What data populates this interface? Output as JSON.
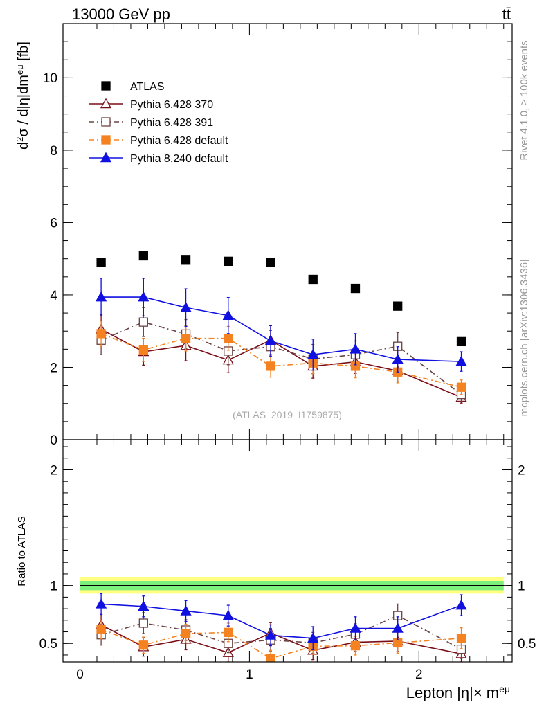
{
  "header": {
    "energy_label": "13000 GeV pp",
    "process_label": "tt̄"
  },
  "side_labels": {
    "rivet": "Rivet 4.1.0, ≥ 100k events",
    "mcplots": "mcplots.cern.ch [arXiv:1306.3436]"
  },
  "watermark": "(ATLAS_2019_I1759875)",
  "colors": {
    "atlas": "#000000",
    "p370": "#7a0e18",
    "p391": "#6b4343",
    "p6def": "#f58220",
    "p8def": "#1010e0",
    "band_outer": "#ffff80",
    "band_inner": "#7cf07c"
  },
  "chart_data": [
    {
      "type": "line",
      "panel": "main",
      "ylabel_parts": [
        "d",
        "2",
        "σ / d|η|dm",
        "eμ",
        " [fb]"
      ],
      "ylim": [
        0,
        11.5
      ],
      "yticks": [
        0,
        2,
        4,
        6,
        8,
        10
      ],
      "ytick_labels": [
        "0",
        "2",
        "4",
        "6",
        "8",
        "10"
      ],
      "xlim": [
        -0.1,
        2.55
      ],
      "x": [
        0.125,
        0.375,
        0.625,
        0.875,
        1.125,
        1.375,
        1.625,
        1.875,
        2.25
      ],
      "legend_position": "top-left",
      "series": [
        {
          "name": "ATLAS",
          "key": "atlas",
          "marker": "square-filled",
          "line": "none",
          "values": [
            4.9,
            5.08,
            4.96,
            4.93,
            4.9,
            4.43,
            4.18,
            3.69,
            2.71
          ],
          "errors": [
            0.1,
            0.1,
            0.1,
            0.1,
            0.1,
            0.1,
            0.1,
            0.1,
            0.08
          ]
        },
        {
          "name": "Pythia 6.428 370",
          "key": "p370",
          "marker": "triangle-open",
          "line": "solid",
          "values": [
            3.05,
            2.43,
            2.6,
            2.2,
            2.75,
            2.03,
            2.15,
            1.9,
            1.17
          ],
          "errors": [
            0.4,
            0.37,
            0.42,
            0.35,
            0.4,
            0.33,
            0.32,
            0.3,
            0.16
          ]
        },
        {
          "name": "Pythia 6.428 391",
          "key": "p391",
          "marker": "square-open",
          "line": "dashdot",
          "values": [
            2.75,
            3.25,
            2.92,
            2.45,
            2.57,
            2.23,
            2.35,
            2.58,
            1.25
          ],
          "errors": [
            0.4,
            0.4,
            0.4,
            0.38,
            0.45,
            0.4,
            0.38,
            0.38,
            0.2
          ]
        },
        {
          "name": "Pythia 6.428 default",
          "key": "p6def",
          "marker": "square-filled",
          "line": "dashdot",
          "values": [
            2.93,
            2.48,
            2.8,
            2.8,
            2.03,
            2.12,
            2.03,
            1.87,
            1.45
          ],
          "errors": [
            0.35,
            0.32,
            0.35,
            0.33,
            0.3,
            0.3,
            0.32,
            0.3,
            0.2
          ]
        },
        {
          "name": "Pythia 8.240 default",
          "key": "p8def",
          "marker": "triangle-filled",
          "line": "solid",
          "values": [
            3.94,
            3.94,
            3.65,
            3.43,
            2.73,
            2.35,
            2.5,
            2.22,
            2.16
          ],
          "errors": [
            0.52,
            0.52,
            0.52,
            0.5,
            0.43,
            0.43,
            0.43,
            0.35,
            0.27
          ]
        }
      ]
    },
    {
      "type": "line",
      "panel": "ratio",
      "ylabel": "Ratio to ATLAS",
      "ylim": [
        0.34,
        2.26
      ],
      "yticks": [
        0.5,
        1,
        2
      ],
      "ytick_labels": [
        "0.5",
        "1",
        "2"
      ],
      "xlim": [
        -0.1,
        2.55
      ],
      "xticks": [
        0,
        1,
        2
      ],
      "xtick_labels": [
        "0",
        "1",
        "2"
      ],
      "xlabel_parts": [
        "Lepton |η|× m",
        "eμ"
      ],
      "x": [
        0.125,
        0.375,
        0.625,
        0.875,
        1.125,
        1.375,
        1.625,
        1.875,
        2.25
      ],
      "band": {
        "x": [
          0.0,
          2.5
        ],
        "inner": [
          0.96,
          1.04
        ],
        "outer": [
          0.93,
          1.07
        ]
      },
      "series": [
        {
          "name": "Pythia 6.428 370",
          "key": "p370",
          "marker": "triangle-open",
          "line": "solid",
          "values": [
            0.66,
            0.47,
            0.535,
            0.42,
            0.59,
            0.44,
            0.51,
            0.52,
            0.41
          ],
          "errors": [
            0.09,
            0.08,
            0.09,
            0.08,
            0.09,
            0.08,
            0.08,
            0.09,
            0.07
          ]
        },
        {
          "name": "Pythia 6.428 391",
          "key": "p391",
          "marker": "square-open",
          "line": "dashdot",
          "values": [
            0.575,
            0.675,
            0.615,
            0.5,
            0.53,
            0.505,
            0.58,
            0.74,
            0.45
          ],
          "errors": [
            0.09,
            0.09,
            0.09,
            0.08,
            0.1,
            0.09,
            0.09,
            0.1,
            0.08
          ]
        },
        {
          "name": "Pythia 6.428 default",
          "key": "p6def",
          "marker": "square-filled",
          "line": "dashdot",
          "values": [
            0.62,
            0.485,
            0.585,
            0.595,
            0.37,
            0.475,
            0.48,
            0.505,
            0.545
          ],
          "errors": [
            0.08,
            0.07,
            0.08,
            0.08,
            0.07,
            0.07,
            0.08,
            0.09,
            0.09
          ]
        },
        {
          "name": "Pythia 8.240 default",
          "key": "p8def",
          "marker": "triangle-filled",
          "line": "solid",
          "values": [
            0.84,
            0.82,
            0.78,
            0.74,
            0.57,
            0.545,
            0.63,
            0.63,
            0.83
          ],
          "errors": [
            0.09,
            0.09,
            0.09,
            0.09,
            0.09,
            0.1,
            0.1,
            0.1,
            0.09
          ]
        }
      ]
    }
  ]
}
